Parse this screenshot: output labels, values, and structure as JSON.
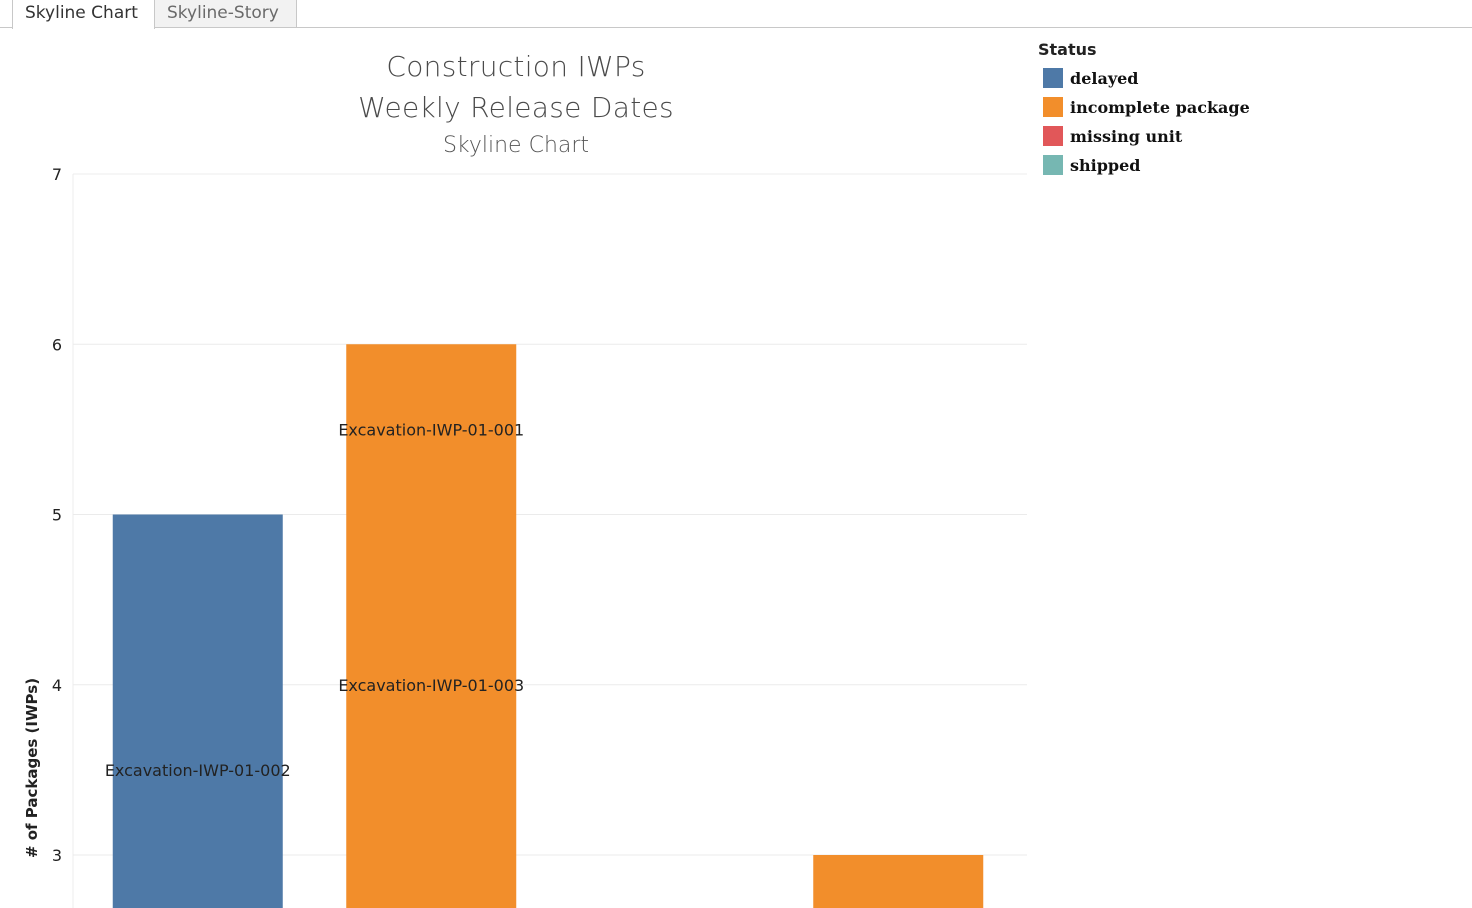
{
  "tabs": [
    {
      "label": "Skyline Chart",
      "active": true
    },
    {
      "label": "Skyline-Story",
      "active": false
    }
  ],
  "chart_title": {
    "line1": "Construction IWPs",
    "line2": "Weekly Release Dates",
    "line3": "Skyline Chart"
  },
  "legend": {
    "title": "Status",
    "items": [
      {
        "label": "delayed",
        "color": "#4e79a7"
      },
      {
        "label": "incomplete  package",
        "color": "#f28e2b"
      },
      {
        "label": "missing  unit",
        "color": "#e15759"
      },
      {
        "label": "shipped",
        "color": "#76b7b2"
      }
    ]
  },
  "chart_data": {
    "type": "bar",
    "ylabel": "# of Packages (IWPs)",
    "ylim": [
      2.7,
      7
    ],
    "yticks": [
      3,
      4,
      5,
      6,
      7
    ],
    "grid": true,
    "legend_position": "top-right",
    "bars": [
      {
        "value": 5,
        "status": "delayed",
        "label": "Excavation-IWP-01-002",
        "label_y": 3.5
      },
      {
        "value": 6,
        "status": "incomplete package",
        "label": "Excavation-IWP-01-001",
        "label_y": 5.5,
        "label2": "Excavation-IWP-01-003",
        "label2_y": 4
      },
      {
        "value": null,
        "status": null,
        "label": ""
      },
      {
        "value": 3,
        "status": "incomplete package",
        "label": ""
      }
    ],
    "colors": {
      "delayed": "#4e79a7",
      "incomplete package": "#f28e2b",
      "missing unit": "#e15759",
      "shipped": "#76b7b2"
    }
  }
}
